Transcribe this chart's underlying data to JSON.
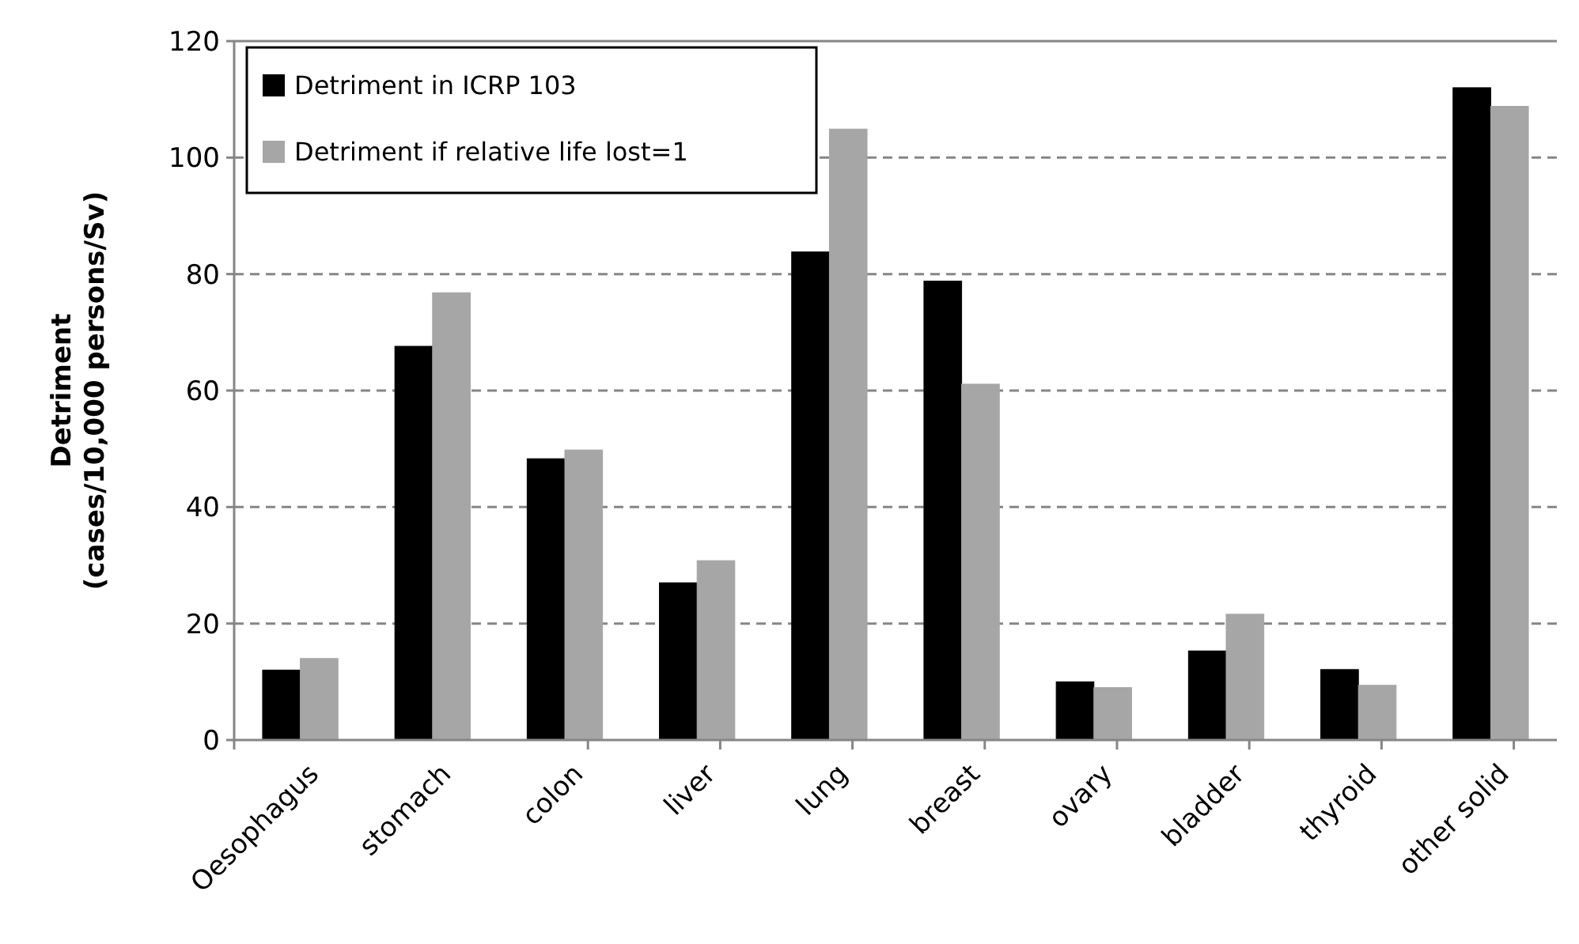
{
  "chart_data": {
    "type": "bar",
    "ylabel": "Detriment\n(cases/10,000 persons/Sv)",
    "categories": [
      "Oesophagus",
      "stomach",
      "colon",
      "liver",
      "lung",
      "breast",
      "ovary",
      "bladder",
      "thyroid",
      "other solid"
    ],
    "series": [
      {
        "name": "Detriment in ICRP 103",
        "color": "#000000",
        "values": [
          12,
          67.6,
          48.3,
          27,
          83.8,
          78.8,
          10,
          15.3,
          12.1,
          112
        ]
      },
      {
        "name": "Detriment if relative life lost=1",
        "color": "#a6a6a6",
        "values": [
          14,
          76.8,
          49.8,
          30.8,
          104.9,
          61.1,
          9,
          21.6,
          9.4,
          108.8
        ]
      }
    ],
    "ylim": [
      0,
      120
    ],
    "yticks": [
      0,
      20,
      40,
      60,
      80,
      100,
      120
    ],
    "grid": "y",
    "legend": "top left"
  }
}
